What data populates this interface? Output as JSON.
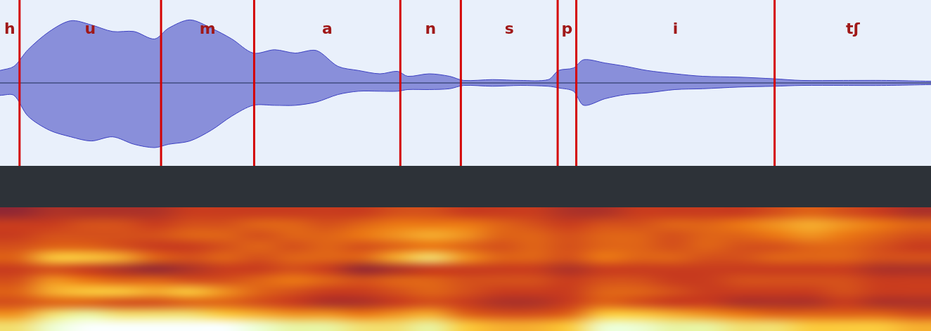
{
  "chart_data": [
    {
      "type": "line",
      "xlim": [
        0,
        1
      ],
      "ylim": [
        -1,
        1
      ],
      "tick_labels": false,
      "grid": false,
      "color": "#3b3fc0",
      "x": [
        0,
        0.015,
        0.03,
        0.053,
        0.076,
        0.098,
        0.121,
        0.144,
        0.166,
        0.181,
        0.204,
        0.227,
        0.249,
        0.272,
        0.295,
        0.317,
        0.34,
        0.363,
        0.385,
        0.408,
        0.427,
        0.438,
        0.461,
        0.483,
        0.498,
        0.529,
        0.559,
        0.589,
        0.6,
        0.616,
        0.627,
        0.65,
        0.672,
        0.695,
        0.725,
        0.755,
        0.793,
        0.831,
        0.861,
        0.906,
        0.952,
        1.0
      ],
      "envelope": {
        "upper": [
          0.15,
          0.2,
          0.4,
          0.62,
          0.75,
          0.7,
          0.62,
          0.62,
          0.53,
          0.66,
          0.76,
          0.66,
          0.53,
          0.36,
          0.4,
          0.36,
          0.39,
          0.2,
          0.15,
          0.11,
          0.14,
          0.08,
          0.11,
          0.08,
          0.03,
          0.04,
          0.03,
          0.04,
          0.15,
          0.18,
          0.28,
          0.24,
          0.2,
          0.15,
          0.11,
          0.08,
          0.07,
          0.05,
          0.03,
          0.03,
          0.03,
          0.02
        ],
        "lower": [
          -0.15,
          -0.15,
          -0.4,
          -0.57,
          -0.65,
          -0.7,
          -0.65,
          -0.74,
          -0.78,
          -0.74,
          -0.7,
          -0.57,
          -0.4,
          -0.27,
          -0.27,
          -0.27,
          -0.23,
          -0.14,
          -0.1,
          -0.1,
          -0.1,
          -0.08,
          -0.08,
          -0.07,
          -0.03,
          -0.04,
          -0.03,
          -0.04,
          -0.06,
          -0.1,
          -0.27,
          -0.19,
          -0.14,
          -0.12,
          -0.08,
          -0.07,
          -0.05,
          -0.04,
          -0.03,
          -0.03,
          -0.03,
          -0.02
        ]
      },
      "segments": {
        "labels": [
          "h",
          "u",
          "m",
          "a",
          "n",
          "s",
          "p",
          "i",
          "tʃ"
        ],
        "bounds": [
          0,
          0.021,
          0.173,
          0.273,
          0.43,
          0.495,
          0.599,
          0.619,
          0.832,
          1
        ],
        "color": "#d40000"
      }
    },
    {
      "type": "heatmap",
      "xlim": [
        0,
        1
      ],
      "tick_labels": false,
      "zlim": [
        0,
        1
      ],
      "cells": [
        [
          0.85,
          0.95,
          1,
          1,
          1,
          1,
          1,
          0.95,
          0.9,
          0.9,
          0.85,
          0.85,
          0.9,
          0.8,
          0.75,
          0.75,
          0.8,
          0.95,
          0.95,
          0.9,
          0.9,
          0.85,
          0.85,
          0.8,
          0.8,
          0.8,
          0.75
        ],
        [
          0.7,
          0.85,
          0.9,
          0.85,
          0.85,
          0.85,
          0.8,
          0.75,
          0.7,
          0.7,
          0.65,
          0.7,
          0.75,
          0.6,
          0.55,
          0.55,
          0.6,
          0.8,
          0.8,
          0.75,
          0.7,
          0.65,
          0.6,
          0.6,
          0.6,
          0.6,
          0.55
        ],
        [
          0.55,
          0.6,
          0.6,
          0.55,
          0.55,
          0.6,
          0.6,
          0.55,
          0.5,
          0.45,
          0.45,
          0.5,
          0.55,
          0.5,
          0.45,
          0.45,
          0.5,
          0.6,
          0.55,
          0.5,
          0.5,
          0.45,
          0.45,
          0.45,
          0.5,
          0.45,
          0.45
        ],
        [
          0.6,
          0.75,
          0.8,
          0.8,
          0.75,
          0.8,
          0.7,
          0.6,
          0.55,
          0.5,
          0.5,
          0.55,
          0.6,
          0.55,
          0.5,
          0.5,
          0.5,
          0.6,
          0.6,
          0.55,
          0.5,
          0.5,
          0.5,
          0.5,
          0.55,
          0.5,
          0.5
        ],
        [
          0.55,
          0.7,
          0.65,
          0.6,
          0.6,
          0.55,
          0.55,
          0.6,
          0.65,
          0.6,
          0.55,
          0.6,
          0.6,
          0.55,
          0.55,
          0.55,
          0.5,
          0.55,
          0.55,
          0.5,
          0.5,
          0.55,
          0.55,
          0.55,
          0.55,
          0.5,
          0.5
        ],
        [
          0.5,
          0.55,
          0.5,
          0.45,
          0.4,
          0.45,
          0.5,
          0.5,
          0.55,
          0.5,
          0.4,
          0.45,
          0.5,
          0.5,
          0.5,
          0.5,
          0.45,
          0.5,
          0.5,
          0.5,
          0.5,
          0.5,
          0.5,
          0.5,
          0.5,
          0.45,
          0.45
        ],
        [
          0.6,
          0.8,
          0.8,
          0.75,
          0.6,
          0.55,
          0.6,
          0.55,
          0.6,
          0.6,
          0.6,
          0.75,
          0.85,
          0.7,
          0.6,
          0.6,
          0.55,
          0.65,
          0.6,
          0.6,
          0.55,
          0.55,
          0.6,
          0.6,
          0.6,
          0.55,
          0.55
        ],
        [
          0.55,
          0.6,
          0.6,
          0.55,
          0.5,
          0.5,
          0.55,
          0.6,
          0.55,
          0.6,
          0.55,
          0.6,
          0.65,
          0.6,
          0.55,
          0.6,
          0.55,
          0.6,
          0.6,
          0.55,
          0.6,
          0.55,
          0.55,
          0.6,
          0.6,
          0.55,
          0.5
        ],
        [
          0.5,
          0.55,
          0.55,
          0.55,
          0.55,
          0.6,
          0.6,
          0.55,
          0.6,
          0.6,
          0.65,
          0.7,
          0.75,
          0.7,
          0.6,
          0.6,
          0.55,
          0.6,
          0.6,
          0.55,
          0.6,
          0.6,
          0.65,
          0.7,
          0.65,
          0.6,
          0.55
        ],
        [
          0.5,
          0.5,
          0.55,
          0.55,
          0.5,
          0.55,
          0.55,
          0.6,
          0.6,
          0.55,
          0.6,
          0.65,
          0.65,
          0.65,
          0.6,
          0.55,
          0.5,
          0.55,
          0.55,
          0.6,
          0.6,
          0.65,
          0.7,
          0.75,
          0.7,
          0.65,
          0.6
        ],
        [
          0.4,
          0.45,
          0.45,
          0.45,
          0.45,
          0.5,
          0.5,
          0.5,
          0.5,
          0.5,
          0.5,
          0.55,
          0.55,
          0.5,
          0.5,
          0.5,
          0.45,
          0.45,
          0.5,
          0.5,
          0.5,
          0.5,
          0.55,
          0.6,
          0.55,
          0.5,
          0.45
        ]
      ]
    }
  ]
}
